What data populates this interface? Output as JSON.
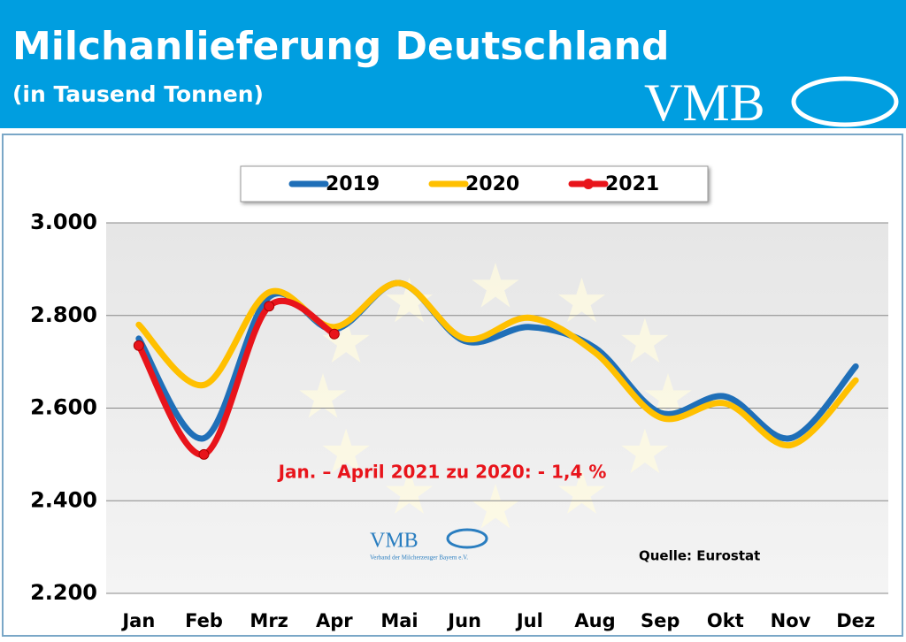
{
  "chart_data": {
    "type": "line",
    "title": "Milchanlieferung Deutschland",
    "subtitle": "(in Tausend Tonnen)",
    "logo": "VMB",
    "logo_small": "VMB",
    "logo_caption": "Verband der Milcherzeuger Bayern e.V.",
    "annotation": "Jan. – April 2021 zu 2020: - 1,4 %",
    "source": "Quelle: Eurostat",
    "categories": [
      "Jan",
      "Feb",
      "Mrz",
      "Apr",
      "Mai",
      "Jun",
      "Jul",
      "Aug",
      "Sep",
      "Okt",
      "Nov",
      "Dez"
    ],
    "series": [
      {
        "name": "2019",
        "color": "#1f6fb8",
        "values": [
          2750,
          2535,
          2840,
          2770,
          2870,
          2745,
          2775,
          2730,
          2590,
          2625,
          2535,
          2690
        ]
      },
      {
        "name": "2020",
        "color": "#ffc000",
        "values": [
          2780,
          2650,
          2850,
          2775,
          2870,
          2750,
          2795,
          2720,
          2580,
          2610,
          2520,
          2660
        ]
      },
      {
        "name": "2021",
        "color": "#e8141b",
        "values": [
          2735,
          2500,
          2820,
          2760,
          null,
          null,
          null,
          null,
          null,
          null,
          null,
          null
        ],
        "markers": true
      }
    ],
    "ylim": [
      2200,
      3000
    ],
    "yticks": [
      {
        "value": 2200,
        "label": "2.200"
      },
      {
        "value": 2400,
        "label": "2.400"
      },
      {
        "value": 2600,
        "label": "2.600"
      },
      {
        "value": 2800,
        "label": "2.800"
      },
      {
        "value": 3000,
        "label": "3.000"
      }
    ],
    "grid": true
  }
}
